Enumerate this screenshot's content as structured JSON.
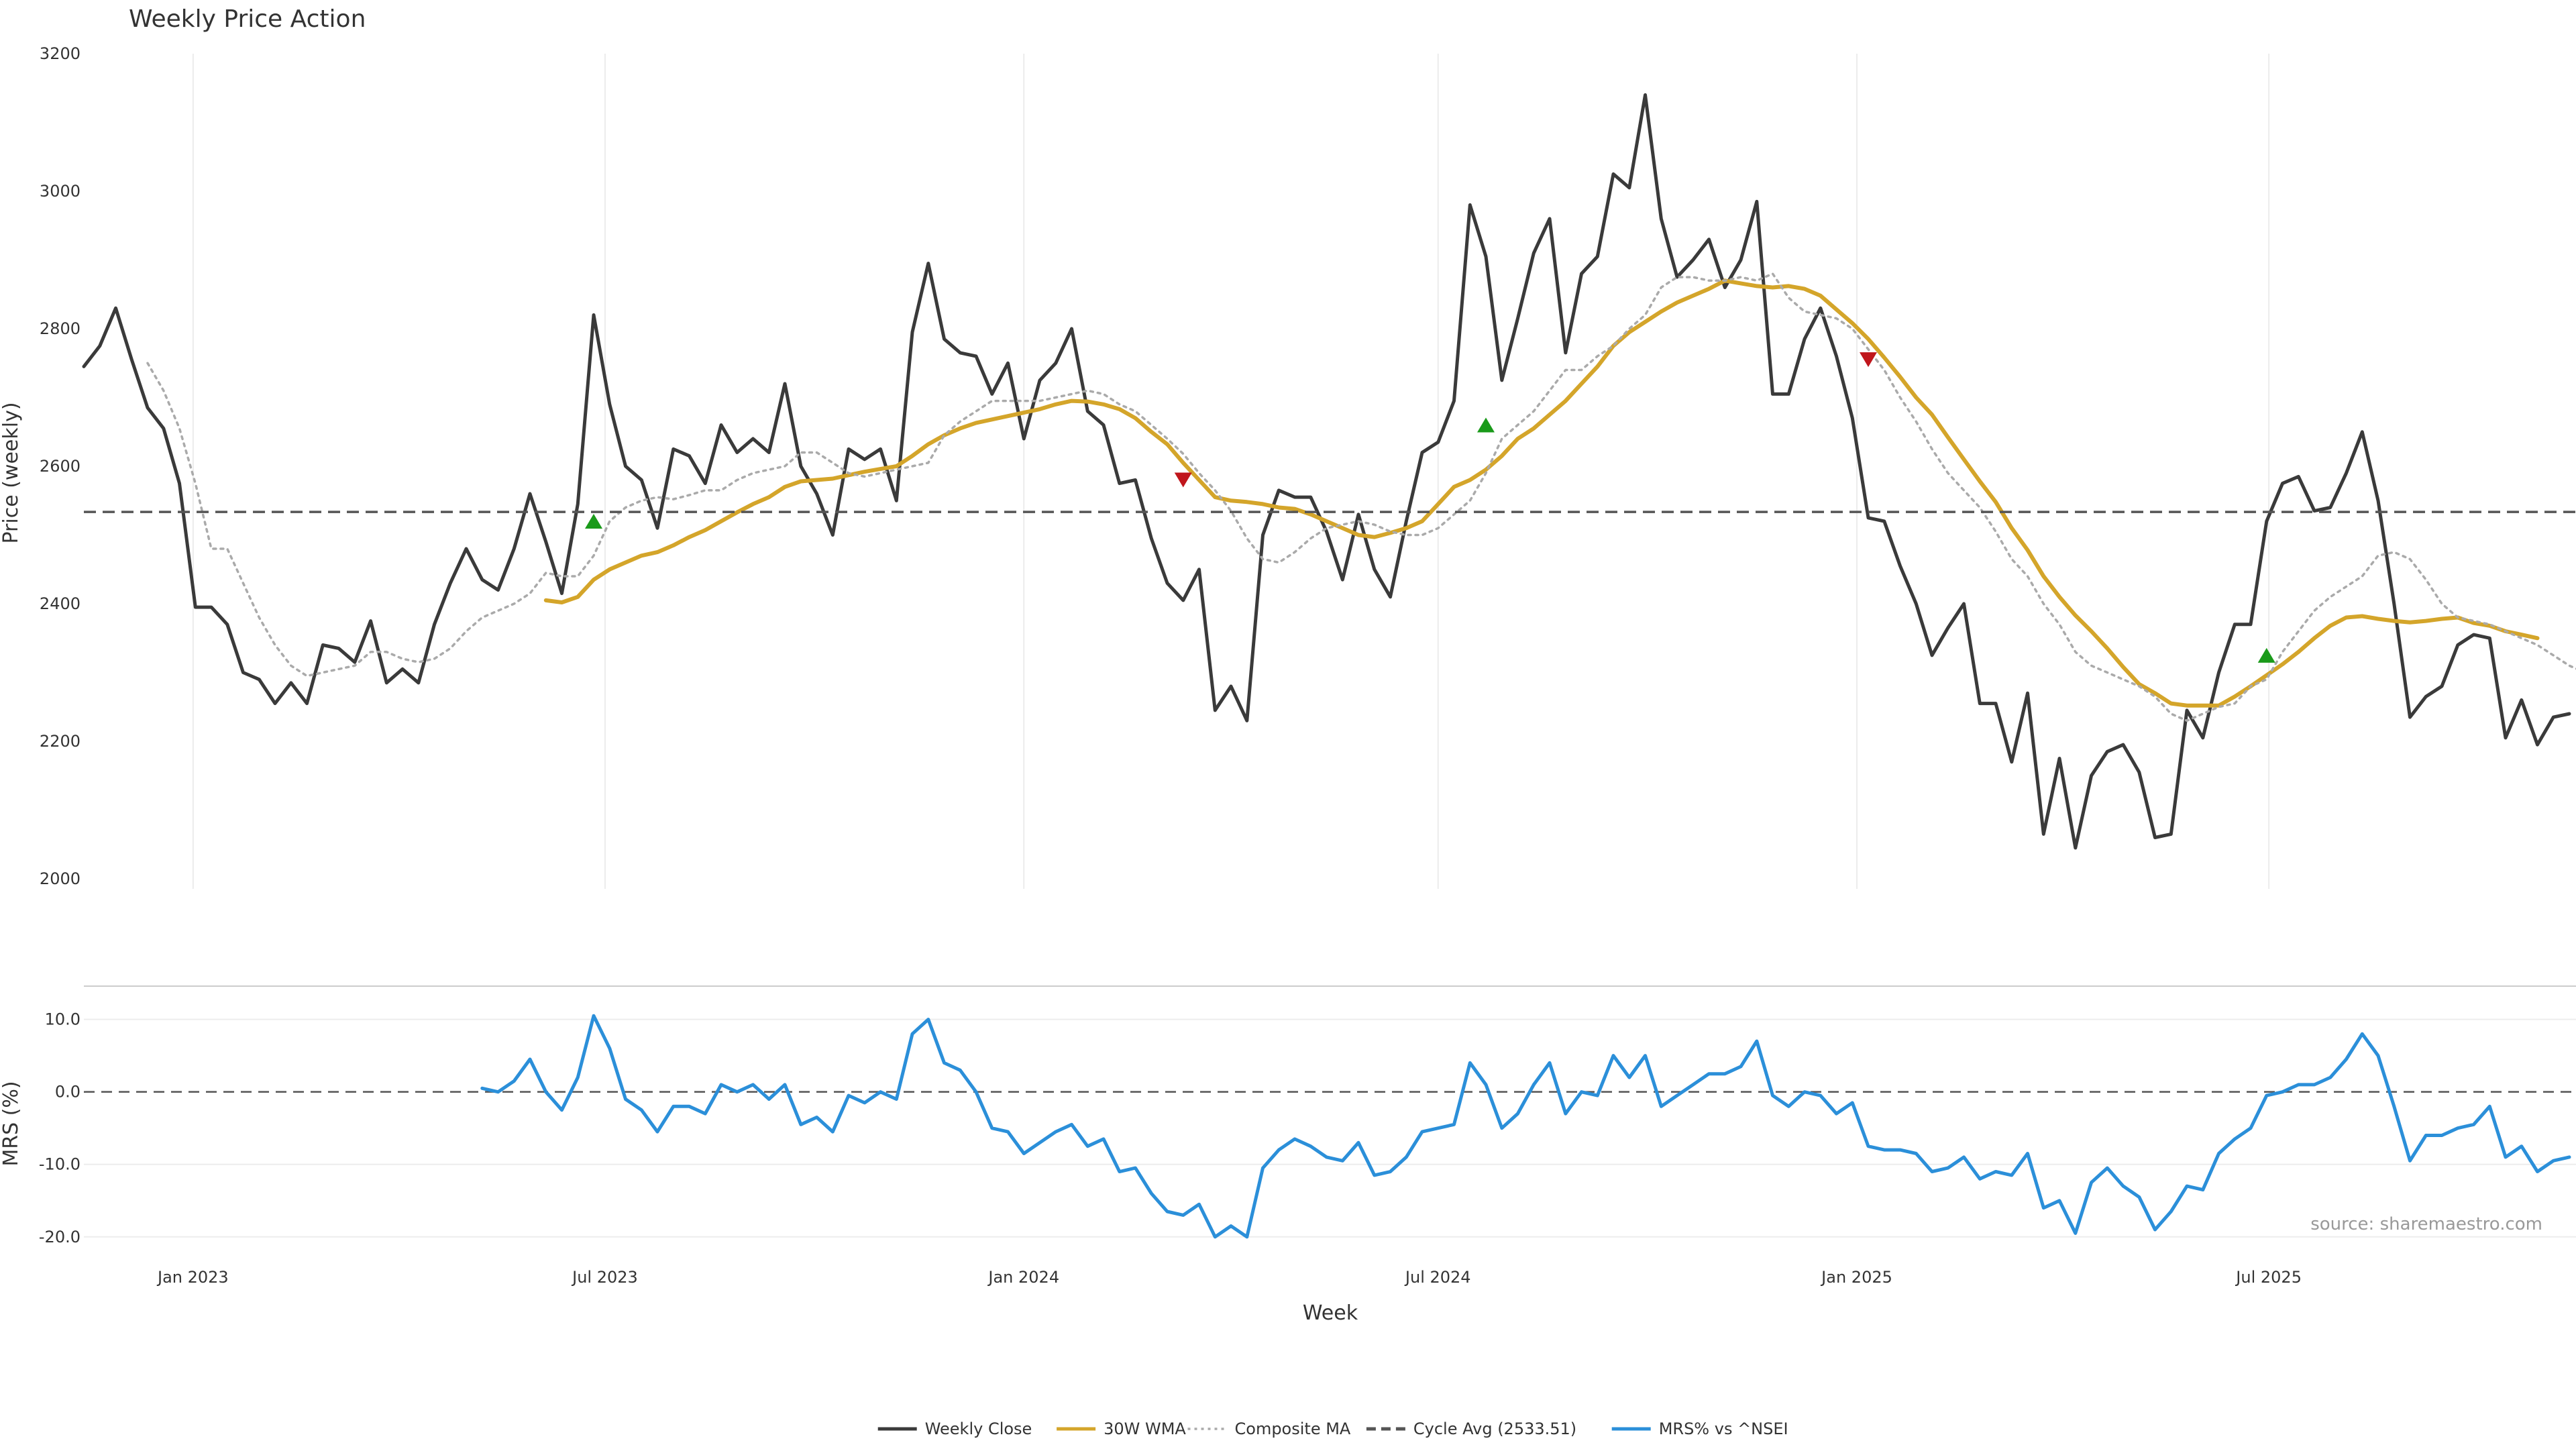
{
  "chart_data": {
    "type": "line",
    "title": "Weekly Price Action",
    "source": "source: sharemaestro.com",
    "xlabel": "Week",
    "x_start": "2022-11-14",
    "x_step_days": 7,
    "x_ticks": [
      "Jan 2023",
      "Jul 2023",
      "Jan 2024",
      "Jul 2024",
      "Jan 2025",
      "Jul 2025"
    ],
    "price_panel": {
      "ylabel": "Price (weekly)",
      "ylim": [
        2000,
        3200
      ],
      "yticks": [
        "2000",
        "2200",
        "2400",
        "2600",
        "2800",
        "3000",
        "3200"
      ],
      "series": [
        {
          "name": "Weekly Close",
          "color": "#3a3a3a",
          "style": "solid",
          "start_index": 0,
          "values": [
            2745,
            2775,
            2830,
            2755,
            2685,
            2655,
            2575,
            2395,
            2395,
            2370,
            2300,
            2290,
            2255,
            2285,
            2255,
            2340,
            2335,
            2315,
            2375,
            2285,
            2305,
            2285,
            2370,
            2430,
            2480,
            2435,
            2420,
            2480,
            2560,
            2490,
            2415,
            2545,
            2820,
            2690,
            2600,
            2580,
            2510,
            2625,
            2615,
            2575,
            2660,
            2620,
            2640,
            2620,
            2720,
            2600,
            2560,
            2500,
            2625,
            2610,
            2625,
            2550,
            2795,
            2895,
            2785,
            2765,
            2760,
            2705,
            2750,
            2640,
            2725,
            2750,
            2800,
            2680,
            2660,
            2575,
            2580,
            2495,
            2430,
            2405,
            2450,
            2245,
            2280,
            2230,
            2500,
            2565,
            2555,
            2555,
            2505,
            2435,
            2530,
            2450,
            2410,
            2520,
            2620,
            2635,
            2695,
            2980,
            2905,
            2725,
            2815,
            2910,
            2960,
            2765,
            2880,
            2905,
            3025,
            3005,
            3140,
            2960,
            2875,
            2900,
            2930,
            2860,
            2900,
            2985,
            2705,
            2705,
            2785,
            2830,
            2760,
            2670,
            2525,
            2520,
            2455,
            2400,
            2325,
            2365,
            2400,
            2255,
            2255,
            2170,
            2270,
            2065,
            2175,
            2045,
            2150,
            2185,
            2195,
            2155,
            2060,
            2065,
            2245,
            2205,
            2300,
            2370,
            2370,
            2520,
            2575,
            2585,
            2535,
            2540,
            2590,
            2650,
            2550,
            2400,
            2235,
            2265,
            2280,
            2340,
            2355,
            2350,
            2205,
            2260,
            2195,
            2235,
            2240
          ]
        },
        {
          "name": "30W WMA",
          "color": "#d4a52a",
          "style": "solid",
          "start_index": 29,
          "values": [
            2405,
            2402,
            2410,
            2435,
            2450,
            2460,
            2470,
            2475,
            2485,
            2497,
            2507,
            2520,
            2533,
            2545,
            2555,
            2570,
            2578,
            2580,
            2582,
            2587,
            2592,
            2596,
            2600,
            2615,
            2632,
            2645,
            2655,
            2663,
            2668,
            2673,
            2678,
            2683,
            2690,
            2695,
            2694,
            2690,
            2683,
            2670,
            2650,
            2632,
            2605,
            2580,
            2555,
            2550,
            2548,
            2545,
            2540,
            2538,
            2530,
            2520,
            2510,
            2500,
            2497,
            2503,
            2510,
            2520,
            2545,
            2570,
            2580,
            2595,
            2615,
            2640,
            2655,
            2675,
            2695,
            2720,
            2745,
            2775,
            2795,
            2810,
            2825,
            2838,
            2848,
            2858,
            2870,
            2866,
            2862,
            2860,
            2862,
            2858,
            2848,
            2828,
            2808,
            2785,
            2758,
            2730,
            2700,
            2675,
            2642,
            2610,
            2578,
            2548,
            2510,
            2478,
            2440,
            2410,
            2383,
            2360,
            2335,
            2308,
            2283,
            2270,
            2255,
            2252,
            2252,
            2252,
            2265,
            2280,
            2296,
            2312,
            2330,
            2350,
            2368,
            2380,
            2382,
            2378,
            2375,
            2373,
            2375,
            2378,
            2380,
            2372,
            2368,
            2360,
            2355,
            2350
          ]
        },
        {
          "name": "Composite MA",
          "color": "#aaaaaa",
          "style": "dotted",
          "start_index": 4,
          "values": [
            2750,
            2710,
            2655,
            2575,
            2480,
            2480,
            2430,
            2380,
            2340,
            2310,
            2295,
            2300,
            2305,
            2310,
            2330,
            2330,
            2320,
            2315,
            2320,
            2335,
            2360,
            2380,
            2390,
            2400,
            2415,
            2445,
            2440,
            2440,
            2470,
            2520,
            2540,
            2550,
            2555,
            2552,
            2558,
            2565,
            2565,
            2580,
            2590,
            2595,
            2600,
            2620,
            2620,
            2605,
            2590,
            2585,
            2590,
            2595,
            2600,
            2605,
            2645,
            2665,
            2680,
            2695,
            2695,
            2695,
            2695,
            2700,
            2705,
            2710,
            2705,
            2690,
            2680,
            2660,
            2640,
            2618,
            2590,
            2565,
            2535,
            2495,
            2465,
            2460,
            2475,
            2495,
            2510,
            2515,
            2520,
            2515,
            2505,
            2500,
            2500,
            2510,
            2530,
            2550,
            2590,
            2640,
            2660,
            2680,
            2710,
            2740,
            2740,
            2760,
            2775,
            2800,
            2820,
            2860,
            2875,
            2875,
            2870,
            2870,
            2875,
            2870,
            2880,
            2845,
            2825,
            2820,
            2815,
            2800,
            2770,
            2740,
            2700,
            2665,
            2625,
            2590,
            2565,
            2540,
            2505,
            2465,
            2440,
            2400,
            2370,
            2330,
            2310,
            2300,
            2290,
            2280,
            2265,
            2240,
            2230,
            2240,
            2250,
            2255,
            2280,
            2290,
            2330,
            2360,
            2390,
            2410,
            2425,
            2440,
            2470,
            2475,
            2465,
            2435,
            2400,
            2380,
            2375,
            2370,
            2360,
            2350,
            2340,
            2325,
            2310,
            2300
          ]
        },
        {
          "name": "Cycle Avg (2533.51)",
          "color": "#555555",
          "style": "dashed",
          "value": 2533.51
        }
      ],
      "signals": [
        {
          "type": "up",
          "index": 32,
          "value": 2520
        },
        {
          "type": "down",
          "index": 69,
          "value": 2580
        },
        {
          "type": "up",
          "index": 88,
          "value": 2660
        },
        {
          "type": "down",
          "index": 112,
          "value": 2755
        },
        {
          "type": "up",
          "index": 137,
          "value": 2325
        }
      ]
    },
    "mrs_panel": {
      "ylabel": "MRS (%)",
      "ylim": [
        -21.5,
        12
      ],
      "yticks": [
        "-20.0",
        "-10.0",
        "0.0",
        "10.0"
      ],
      "series": [
        {
          "name": "MRS% vs ^NSEI",
          "color": "#2b8fd9",
          "style": "solid",
          "start_index": 25,
          "values": [
            0.5,
            0.0,
            1.5,
            4.5,
            0.0,
            -2.5,
            2.0,
            10.5,
            6.0,
            -1.0,
            -2.5,
            -5.5,
            -2.0,
            -2.0,
            -3.0,
            1.0,
            0.0,
            1.0,
            -1.0,
            1.0,
            -4.5,
            -3.5,
            -5.5,
            -0.5,
            -1.5,
            0.0,
            -1.0,
            8.0,
            10.0,
            4.0,
            3.0,
            0.0,
            -5.0,
            -5.5,
            -8.5,
            -7.0,
            -5.5,
            -4.5,
            -7.5,
            -6.5,
            -11.0,
            -10.5,
            -14.0,
            -16.5,
            -17.0,
            -15.5,
            -20.0,
            -18.5,
            -20.0,
            -10.5,
            -8.0,
            -6.5,
            -7.5,
            -9.0,
            -9.5,
            -7.0,
            -11.5,
            -11.0,
            -9.0,
            -5.5,
            -5.0,
            -4.5,
            4.0,
            1.0,
            -5.0,
            -3.0,
            1.0,
            4.0,
            -3.0,
            0.0,
            -0.5,
            5.0,
            2.0,
            5.0,
            -2.0,
            -0.5,
            1.0,
            2.5,
            2.5,
            3.5,
            7.0,
            -0.5,
            -2.0,
            0.0,
            -0.5,
            -3.0,
            -1.5,
            -7.5,
            -8.0,
            -8.0,
            -8.5,
            -11.0,
            -10.5,
            -9.0,
            -12.0,
            -11.0,
            -11.5,
            -8.5,
            -16.0,
            -15.0,
            -19.5,
            -12.5,
            -10.5,
            -13.0,
            -14.5,
            -19.0,
            -16.5,
            -13.0,
            -13.5,
            -8.5,
            -6.5,
            -5.0,
            -0.5,
            0.0,
            1.0,
            1.0,
            2.0,
            4.5,
            8.0,
            5.0,
            -2.0,
            -9.5,
            -6.0,
            -6.0,
            -5.0,
            -4.5,
            -2.0,
            -9.0,
            -7.5,
            -11.0,
            -9.5,
            -9.0
          ]
        }
      ]
    },
    "legend": {
      "position": "bottom-center",
      "items": [
        {
          "label": "Weekly Close",
          "color": "#3a3a3a",
          "style": "solid"
        },
        {
          "label": "30W WMA",
          "color": "#d4a52a",
          "style": "solid"
        },
        {
          "label": "Composite MA",
          "color": "#aaaaaa",
          "style": "dotted"
        },
        {
          "label": "Cycle Avg (2533.51)",
          "color": "#555555",
          "style": "dashed"
        },
        {
          "label": "MRS% vs ^NSEI",
          "color": "#2b8fd9",
          "style": "solid"
        }
      ]
    },
    "grid": true
  }
}
